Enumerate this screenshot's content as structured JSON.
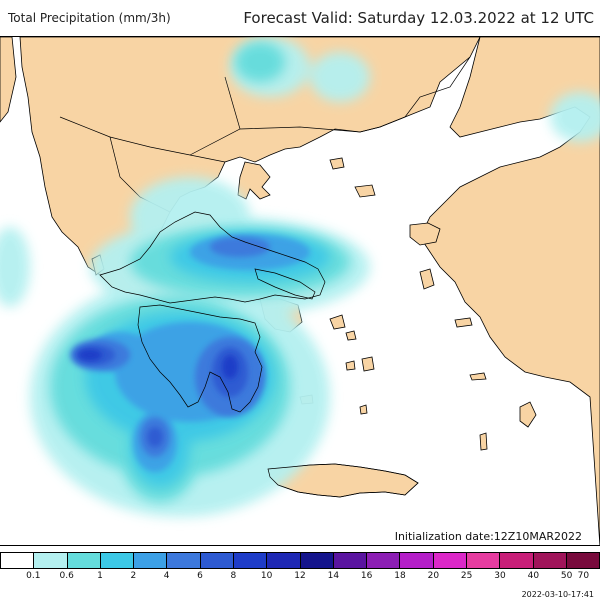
{
  "header": {
    "title_left": "Total Precipitation (mm/3h)",
    "title_right": "Forecast Valid:  Saturday 12.03.2022 at 12 UTC"
  },
  "map": {
    "sea_color": "#ffffff",
    "land_color": "#f8d4a4",
    "border_color": "#000000",
    "init_date": "Initialization date:12Z10MAR2022"
  },
  "legend": {
    "colors": [
      "#ffffff",
      "#b4f0f0",
      "#64dcdc",
      "#3cc8e6",
      "#3ca0e6",
      "#3c78dc",
      "#2d5ad2",
      "#1e3cc8",
      "#1e28b4",
      "#14148c",
      "#5a14a0",
      "#8c1eb4",
      "#b41ec8",
      "#dc28c8",
      "#e63ca0",
      "#c81e78",
      "#a0145a",
      "#780a3c"
    ],
    "labels": [
      "0.1",
      "0.6",
      "1",
      "2",
      "4",
      "6",
      "8",
      "10",
      "12",
      "14",
      "16",
      "18",
      "20",
      "25",
      "30",
      "40",
      "50",
      "70"
    ],
    "timestamp": "2022-03-10-17:41"
  }
}
